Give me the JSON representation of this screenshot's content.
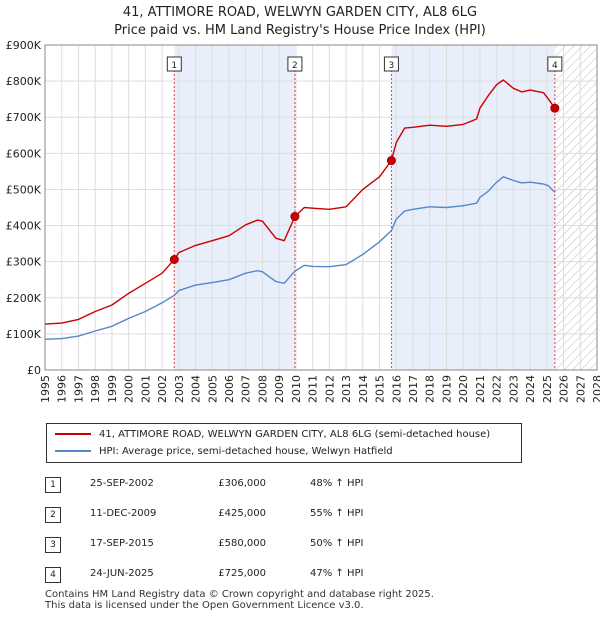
{
  "chart_data": {
    "type": "line",
    "title": "41, ATTIMORE ROAD, WELWYN GARDEN CITY, AL8 6LG",
    "subtitle": "Price paid vs. HM Land Registry's House Price Index (HPI)",
    "xlabel": "",
    "ylabel": "",
    "xlim": [
      1995,
      2028
    ],
    "ylim": [
      0,
      900000
    ],
    "x_ticks": [
      1995,
      1996,
      1997,
      1998,
      1999,
      2000,
      2001,
      2002,
      2003,
      2004,
      2005,
      2006,
      2007,
      2008,
      2009,
      2010,
      2011,
      2012,
      2013,
      2014,
      2015,
      2016,
      2017,
      2018,
      2019,
      2020,
      2021,
      2022,
      2023,
      2024,
      2025,
      2026,
      2027,
      2028
    ],
    "y_ticks": [
      {
        "value": 0,
        "label": "£0"
      },
      {
        "value": 100000,
        "label": "£100K"
      },
      {
        "value": 200000,
        "label": "£200K"
      },
      {
        "value": 300000,
        "label": "£300K"
      },
      {
        "value": 400000,
        "label": "£400K"
      },
      {
        "value": 500000,
        "label": "£500K"
      },
      {
        "value": 600000,
        "label": "£600K"
      },
      {
        "value": 700000,
        "label": "£700K"
      },
      {
        "value": 800000,
        "label": "£800K"
      },
      {
        "value": 900000,
        "label": "£900K"
      }
    ],
    "forecast_start": 2025.5,
    "grid": true,
    "series": [
      {
        "name": "41, ATTIMORE ROAD, WELWYN GARDEN CITY, AL8 6LG (semi-detached house)",
        "color": "#cc0000",
        "points": [
          [
            1995,
            127000
          ],
          [
            1996,
            130000
          ],
          [
            1997,
            140000
          ],
          [
            1998,
            162000
          ],
          [
            1999,
            180000
          ],
          [
            2000,
            212000
          ],
          [
            2001,
            240000
          ],
          [
            2002,
            268000
          ],
          [
            2002.73,
            306000
          ],
          [
            2003,
            325000
          ],
          [
            2004,
            345000
          ],
          [
            2005,
            358000
          ],
          [
            2006,
            372000
          ],
          [
            2007,
            402000
          ],
          [
            2007.7,
            415000
          ],
          [
            2008,
            412000
          ],
          [
            2008.8,
            365000
          ],
          [
            2009.3,
            358000
          ],
          [
            2009.94,
            425000
          ],
          [
            2010.5,
            450000
          ],
          [
            2011,
            448000
          ],
          [
            2012,
            445000
          ],
          [
            2013,
            452000
          ],
          [
            2014,
            500000
          ],
          [
            2015,
            535000
          ],
          [
            2015.71,
            580000
          ],
          [
            2016,
            630000
          ],
          [
            2016.5,
            670000
          ],
          [
            2017,
            672000
          ],
          [
            2018,
            678000
          ],
          [
            2019,
            675000
          ],
          [
            2020,
            680000
          ],
          [
            2020.8,
            695000
          ],
          [
            2021,
            725000
          ],
          [
            2021.5,
            760000
          ],
          [
            2022,
            790000
          ],
          [
            2022.4,
            803000
          ],
          [
            2023,
            780000
          ],
          [
            2023.5,
            770000
          ],
          [
            2024,
            775000
          ],
          [
            2024.8,
            768000
          ],
          [
            2025.1,
            750000
          ],
          [
            2025.48,
            725000
          ]
        ]
      },
      {
        "name": "HPI: Average price, semi-detached house, Welwyn Hatfield",
        "color": "#5588cc",
        "points": [
          [
            1995,
            85000
          ],
          [
            1996,
            87000
          ],
          [
            1997,
            94000
          ],
          [
            1998,
            108000
          ],
          [
            1999,
            121000
          ],
          [
            2000,
            143000
          ],
          [
            2001,
            162000
          ],
          [
            2002,
            186000
          ],
          [
            2002.73,
            207000
          ],
          [
            2003,
            220000
          ],
          [
            2004,
            235000
          ],
          [
            2005,
            242000
          ],
          [
            2006,
            250000
          ],
          [
            2007,
            268000
          ],
          [
            2007.7,
            275000
          ],
          [
            2008,
            272000
          ],
          [
            2008.8,
            245000
          ],
          [
            2009.3,
            240000
          ],
          [
            2009.94,
            274000
          ],
          [
            2010.5,
            290000
          ],
          [
            2011,
            287000
          ],
          [
            2012,
            286000
          ],
          [
            2013,
            292000
          ],
          [
            2014,
            320000
          ],
          [
            2015,
            355000
          ],
          [
            2015.71,
            386000
          ],
          [
            2016,
            418000
          ],
          [
            2016.5,
            440000
          ],
          [
            2017,
            445000
          ],
          [
            2018,
            452000
          ],
          [
            2019,
            450000
          ],
          [
            2020,
            455000
          ],
          [
            2020.8,
            462000
          ],
          [
            2021,
            478000
          ],
          [
            2021.5,
            495000
          ],
          [
            2022,
            520000
          ],
          [
            2022.4,
            535000
          ],
          [
            2023,
            525000
          ],
          [
            2023.5,
            518000
          ],
          [
            2024,
            520000
          ],
          [
            2024.8,
            515000
          ],
          [
            2025.1,
            510000
          ],
          [
            2025.48,
            492000
          ]
        ]
      }
    ],
    "sales": [
      {
        "num": "1",
        "x": 2002.73,
        "y": 306000
      },
      {
        "num": "2",
        "x": 2009.94,
        "y": 425000
      },
      {
        "num": "3",
        "x": 2015.71,
        "y": 580000
      },
      {
        "num": "4",
        "x": 2025.48,
        "y": 725000
      }
    ],
    "shaded_spans": [
      [
        2002.73,
        2009.94
      ],
      [
        2015.71,
        2025.48
      ]
    ]
  },
  "title": "41, ATTIMORE ROAD, WELWYN GARDEN CITY, AL8 6LG",
  "subtitle": "Price paid vs. HM Land Registry's House Price Index (HPI)",
  "legend": {
    "property_label": "41, ATTIMORE ROAD, WELWYN GARDEN CITY, AL8 6LG (semi-detached house)",
    "hpi_label": "HPI: Average price, semi-detached house, Welwyn Hatfield",
    "property_color": "#cc0000",
    "hpi_color": "#5588cc"
  },
  "sales_table": [
    {
      "num": "1",
      "date": "25-SEP-2002",
      "price": "£306,000",
      "hpi": "48% ↑ HPI"
    },
    {
      "num": "2",
      "date": "11-DEC-2009",
      "price": "£425,000",
      "hpi": "55% ↑ HPI"
    },
    {
      "num": "3",
      "date": "17-SEP-2015",
      "price": "£580,000",
      "hpi": "50% ↑ HPI"
    },
    {
      "num": "4",
      "date": "24-JUN-2025",
      "price": "£725,000",
      "hpi": "47% ↑ HPI"
    }
  ],
  "footer": {
    "line1": "Contains HM Land Registry data © Crown copyright and database right 2025.",
    "line2": "This data is licensed under the Open Government Licence v3.0."
  }
}
